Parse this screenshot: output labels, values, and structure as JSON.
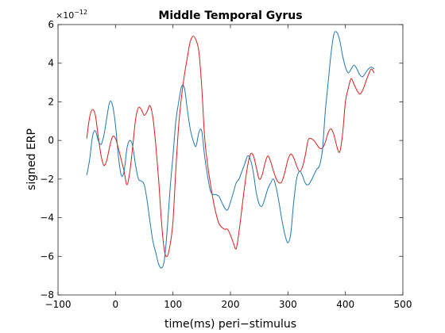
{
  "chart_data": {
    "type": "line",
    "title": "Middle Temporal Gyrus",
    "xlabel": "time(ms) peri−stimulus",
    "ylabel": "signed ERP",
    "xlim": [
      -100,
      500
    ],
    "ylim": [
      -8,
      6
    ],
    "xticks": [
      -100,
      0,
      100,
      200,
      300,
      400,
      500
    ],
    "xtick_labels": [
      "−100",
      "0",
      "100",
      "200",
      "300",
      "400",
      "500"
    ],
    "yticks": [
      -8,
      -6,
      -4,
      -2,
      0,
      2,
      4,
      6
    ],
    "ytick_labels": [
      "−8",
      "−6",
      "−4",
      "−2",
      "0",
      "2",
      "4",
      "6"
    ],
    "y_exponent_base": "×10",
    "y_exponent_power": "−12",
    "grid": false,
    "series": [
      {
        "color": "#dd1c1c",
        "x": [
          -50,
          -45,
          -40,
          -35,
          -30,
          -25,
          -20,
          -15,
          -10,
          -5,
          0,
          5,
          10,
          15,
          20,
          25,
          30,
          35,
          40,
          45,
          50,
          55,
          60,
          65,
          70,
          75,
          80,
          85,
          90,
          95,
          100,
          105,
          110,
          115,
          120,
          125,
          130,
          135,
          140,
          145,
          150,
          155,
          160,
          165,
          170,
          175,
          180,
          185,
          190,
          195,
          200,
          205,
          210,
          215,
          220,
          225,
          230,
          235,
          240,
          245,
          250,
          255,
          260,
          265,
          270,
          275,
          280,
          285,
          290,
          295,
          300,
          305,
          310,
          315,
          320,
          325,
          330,
          335,
          340,
          345,
          350,
          355,
          360,
          365,
          370,
          375,
          380,
          385,
          390,
          395,
          400,
          405,
          410,
          415,
          420,
          425,
          430,
          435,
          440,
          445,
          450
        ],
        "y": [
          0.1,
          1.2,
          1.6,
          1.3,
          0.2,
          -0.8,
          -1.3,
          -1.0,
          -0.3,
          0.2,
          0.1,
          -0.4,
          -1.0,
          -1.6,
          -2.3,
          -1.6,
          -0.3,
          1.1,
          1.7,
          1.6,
          1.3,
          1.5,
          1.8,
          1.2,
          -0.2,
          -2.0,
          -4.2,
          -5.7,
          -6.0,
          -5.4,
          -4.2,
          -1.5,
          0.8,
          2.3,
          3.4,
          4.3,
          5.1,
          5.4,
          5.2,
          4.6,
          2.8,
          0.2,
          -1.2,
          -2.2,
          -3.1,
          -3.8,
          -4.3,
          -4.5,
          -4.6,
          -4.6,
          -4.9,
          -5.3,
          -5.6,
          -4.7,
          -3.5,
          -2.3,
          -1.3,
          -0.7,
          -0.8,
          -1.4,
          -2.0,
          -1.8,
          -1.2,
          -0.8,
          -1.1,
          -1.6,
          -2.0,
          -2.2,
          -2.1,
          -1.6,
          -1.0,
          -0.7,
          -0.9,
          -1.3,
          -1.6,
          -1.4,
          -0.8,
          0.0,
          0.1,
          0.0,
          -0.2,
          -0.4,
          -0.4,
          -0.1,
          0.4,
          0.6,
          0.3,
          -0.3,
          -0.6,
          0.3,
          2.0,
          2.7,
          3.2,
          2.9,
          2.6,
          2.4,
          2.6,
          3.0,
          3.4,
          3.7,
          3.5
        ]
      },
      {
        "color": "#1f77b4",
        "x": [
          -50,
          -45,
          -40,
          -35,
          -30,
          -25,
          -20,
          -15,
          -10,
          -5,
          0,
          5,
          10,
          15,
          20,
          25,
          30,
          35,
          40,
          45,
          50,
          55,
          60,
          65,
          70,
          75,
          80,
          85,
          90,
          95,
          100,
          105,
          110,
          115,
          120,
          125,
          130,
          135,
          140,
          145,
          150,
          155,
          160,
          165,
          170,
          175,
          180,
          185,
          190,
          195,
          200,
          205,
          210,
          215,
          220,
          225,
          230,
          235,
          240,
          245,
          250,
          255,
          260,
          265,
          270,
          275,
          280,
          285,
          290,
          295,
          300,
          305,
          310,
          315,
          320,
          325,
          330,
          335,
          340,
          345,
          350,
          355,
          360,
          365,
          370,
          375,
          380,
          385,
          390,
          395,
          400,
          405,
          410,
          415,
          420,
          425,
          430,
          435,
          440,
          445,
          450
        ],
        "y": [
          -1.8,
          -1.0,
          0.2,
          0.5,
          0.0,
          -0.2,
          0.3,
          1.2,
          2.0,
          1.8,
          0.8,
          -0.8,
          -1.8,
          -1.6,
          -0.4,
          0.0,
          -0.3,
          -1.3,
          -2.0,
          -2.1,
          -2.3,
          -3.1,
          -4.2,
          -5.2,
          -5.8,
          -6.4,
          -6.6,
          -6.2,
          -4.6,
          -2.5,
          -0.8,
          1.0,
          2.0,
          2.8,
          2.7,
          1.6,
          0.6,
          0.0,
          -0.3,
          0.4,
          0.5,
          -0.8,
          -1.8,
          -2.6,
          -2.8,
          -2.8,
          -2.9,
          -3.2,
          -3.5,
          -3.6,
          -3.2,
          -2.7,
          -2.2,
          -2.0,
          -1.6,
          -1.2,
          -0.8,
          -1.0,
          -1.7,
          -2.7,
          -3.3,
          -3.4,
          -3.0,
          -2.5,
          -2.2,
          -2.0,
          -2.5,
          -3.3,
          -4.2,
          -4.9,
          -5.3,
          -4.8,
          -3.2,
          -2.0,
          -1.6,
          -1.8,
          -2.2,
          -2.3,
          -2.1,
          -1.8,
          -1.5,
          -1.3,
          -0.5,
          1.5,
          3.0,
          4.5,
          5.5,
          5.6,
          5.2,
          4.4,
          3.8,
          3.5,
          3.7,
          3.9,
          3.7,
          3.4,
          3.3,
          3.5,
          3.7,
          3.8,
          3.7
        ]
      }
    ]
  }
}
